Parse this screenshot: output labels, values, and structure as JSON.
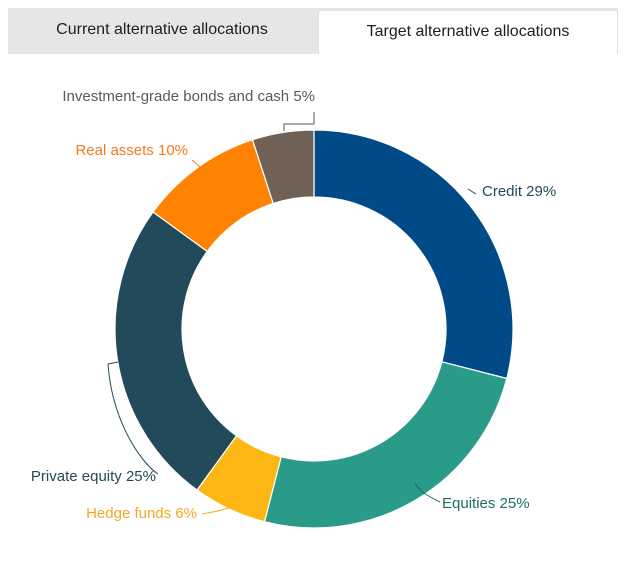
{
  "tabs": {
    "current_label": "Current alternative allocations",
    "target_label": "Target alternative allocations",
    "active": "target"
  },
  "chart_data": {
    "type": "pie",
    "donut": true,
    "title": "",
    "slices": [
      {
        "name": "Credit",
        "value": 29,
        "label": "Credit 29%",
        "color": "#004b87"
      },
      {
        "name": "Equities",
        "value": 25,
        "label": "Equities 25%",
        "color": "#2a9a89"
      },
      {
        "name": "Hedge funds",
        "value": 6,
        "label": "Hedge funds 6%",
        "color": "#fdb714"
      },
      {
        "name": "Private equity",
        "value": 25,
        "label": "Private equity 25%",
        "color": "#234a5a"
      },
      {
        "name": "Real assets",
        "value": 10,
        "label": "Real assets 10%",
        "color": "#ff8200"
      },
      {
        "name": "Investment-grade bonds and cash",
        "value": 5,
        "label": "Investment-grade bonds and cash 5%",
        "color": "#6f6156"
      }
    ],
    "label_colors": {
      "Credit": "#234a5a",
      "Equities": "#1f6e63",
      "Hedge funds": "#f5a623",
      "Private equity": "#234a5a",
      "Real assets": "#f47a1f",
      "Investment-grade bonds and cash": "#5a5a5a"
    }
  }
}
